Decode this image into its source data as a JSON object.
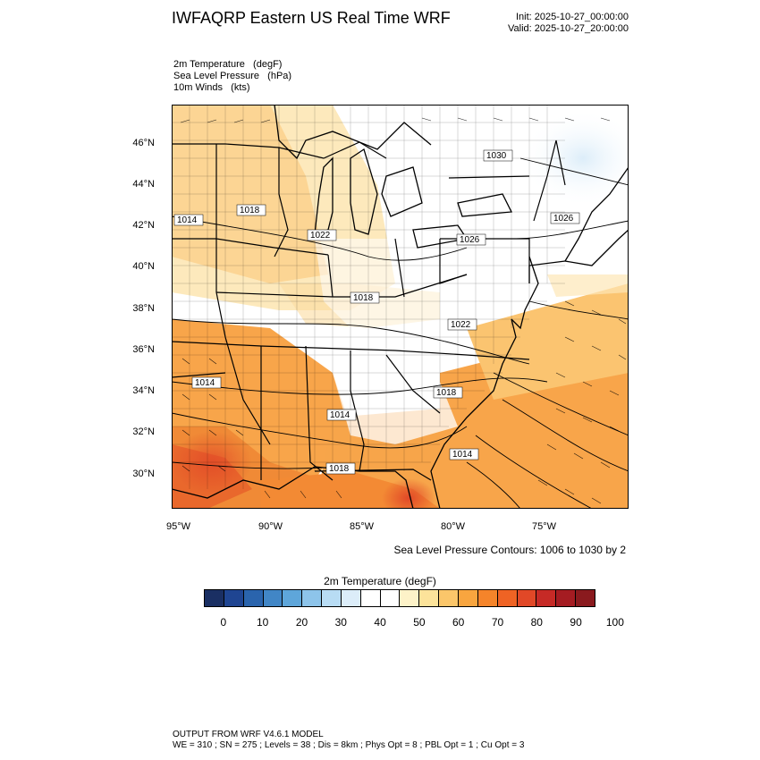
{
  "header": {
    "title": "IWFAQRP Eastern US Real Time WRF",
    "init": "Init: 2025-10-27_00:00:00",
    "valid": "Valid: 2025-10-27_20:00:00"
  },
  "fields": [
    "2m Temperature   (degF)",
    "Sea Level Pressure   (hPa)",
    "10m Winds   (kts)"
  ],
  "axes": {
    "lat_labels": [
      "46°N",
      "44°N",
      "42°N",
      "40°N",
      "38°N",
      "36°N",
      "34°N",
      "32°N",
      "30°N"
    ],
    "lon_labels": [
      "95°W",
      "90°W",
      "85°W",
      "80°W",
      "75°W"
    ]
  },
  "contour_labels": [
    "1030",
    "1018",
    "1014",
    "1022",
    "1026",
    "1026",
    "1018",
    "1022",
    "1014",
    "1018",
    "1014",
    "1018",
    "1014"
  ],
  "contour_note": "Sea Level Pressure Contours: 1006 to 1030 by 2",
  "colorbar": {
    "title": "2m Temperature  (degF)",
    "colors": [
      "#1a2f63",
      "#1f4592",
      "#2a64ad",
      "#4186c6",
      "#5ea6da",
      "#8dc4ea",
      "#b8dcf4",
      "#dcedf9",
      "#ffffff",
      "#ffffff",
      "#fdf2c8",
      "#fce39a",
      "#fbc66a",
      "#f8a53f",
      "#f5842a",
      "#ef6324",
      "#e14827",
      "#c62a26",
      "#a51c22",
      "#8a1a1e"
    ],
    "tick_labels": [
      "0",
      "10",
      "20",
      "30",
      "40",
      "50",
      "60",
      "70",
      "80",
      "90",
      "100"
    ]
  },
  "footer": {
    "line1": "OUTPUT FROM WRF V4.6.1 MODEL",
    "line2": "WE = 310 ; SN = 275 ; Levels = 38 ; Dis = 8km ; Phys Opt = 8 ; PBL Opt = 1 ; Cu Opt = 3"
  }
}
